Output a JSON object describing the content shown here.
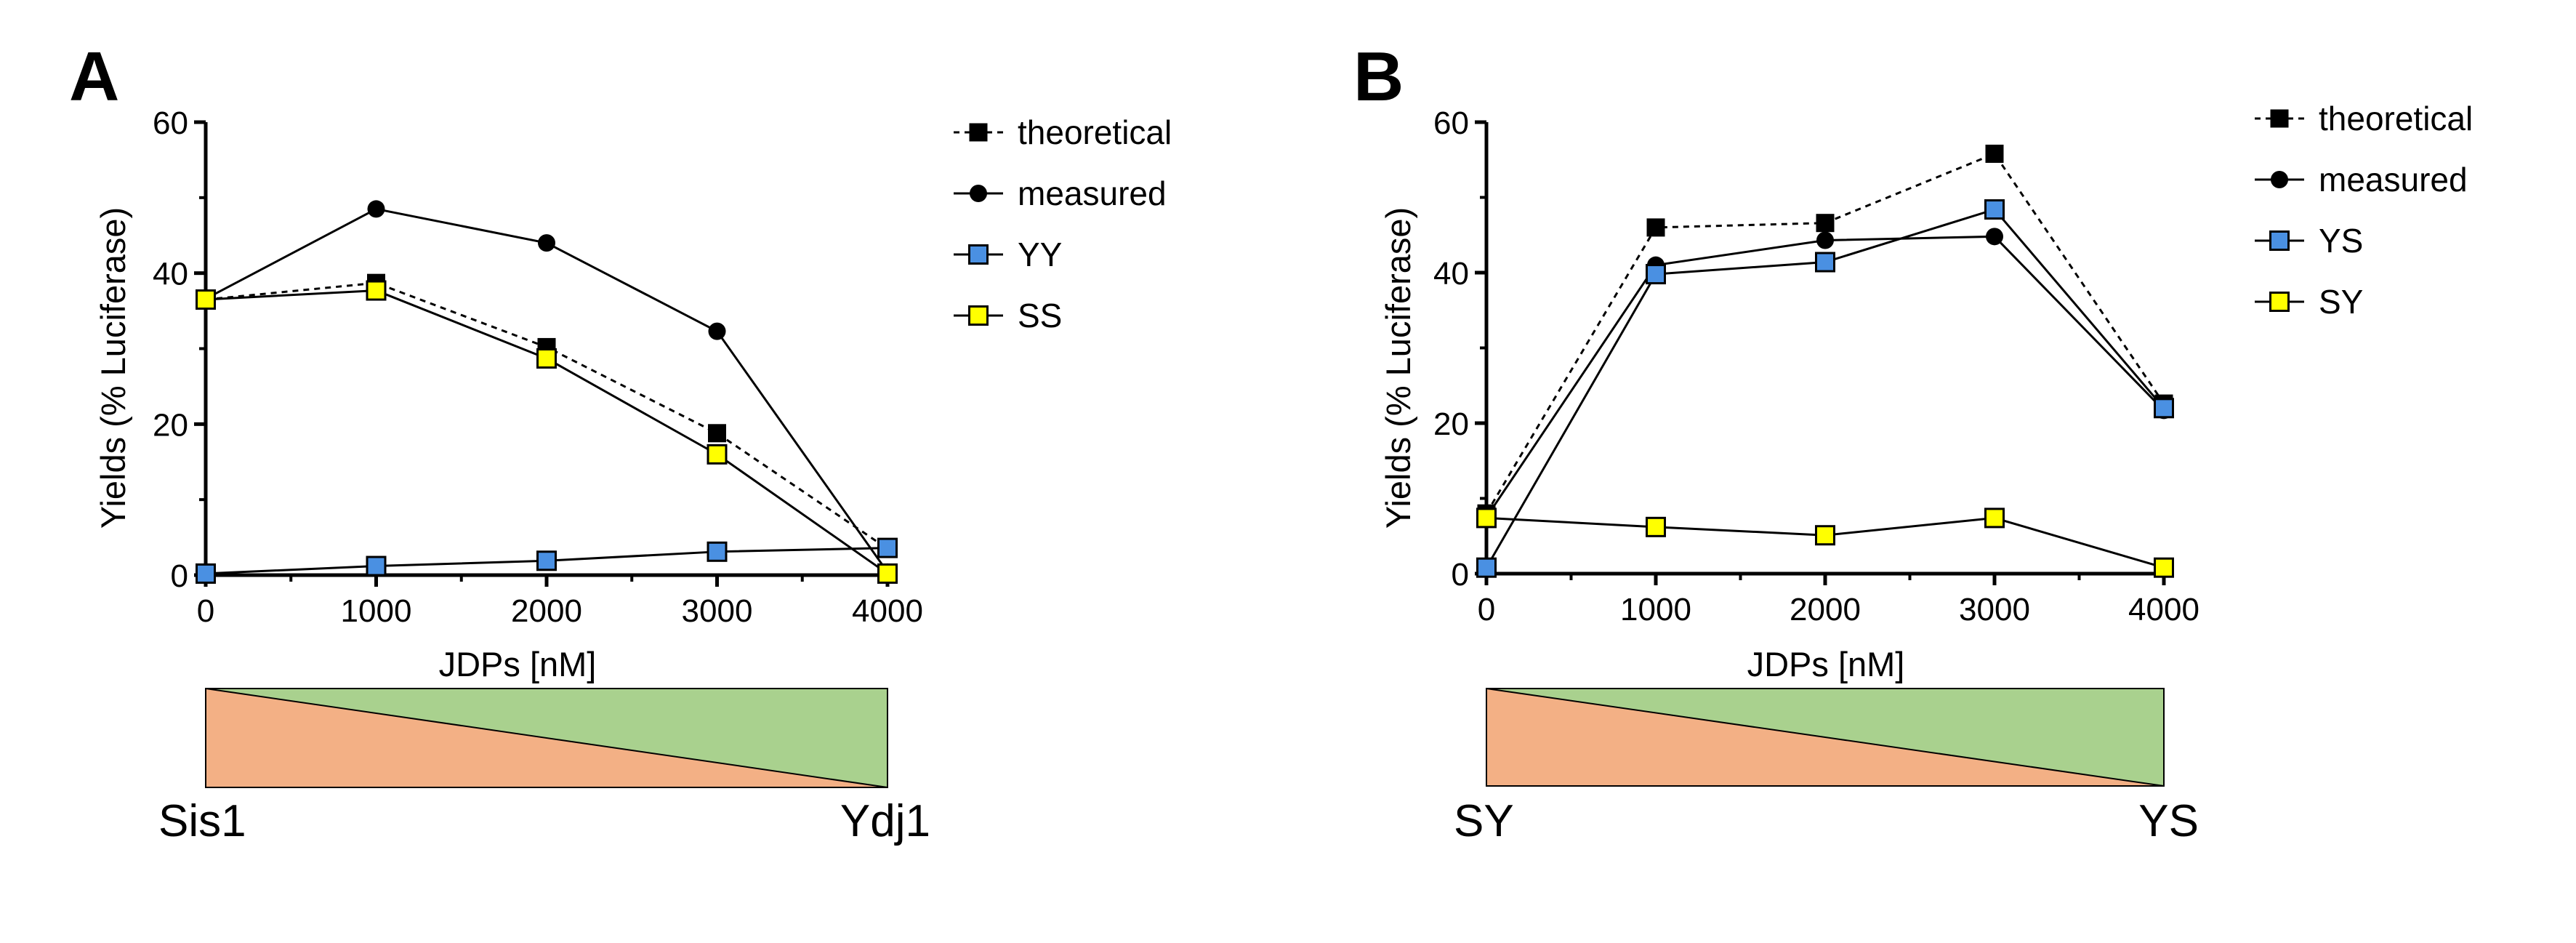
{
  "chart_data": [
    {
      "panel": "A",
      "type": "line",
      "xlabel": "JDPs [nM]",
      "ylabel": "Yields (% Luciferase)",
      "xlim": [
        0,
        4000
      ],
      "ylim": [
        0,
        60
      ],
      "x_ticks": [
        0,
        1000,
        2000,
        3000,
        4000
      ],
      "y_ticks": [
        0,
        20,
        40,
        60
      ],
      "x": [
        0,
        1000,
        2000,
        3000,
        4000
      ],
      "legend_position": "top-right",
      "series": [
        {
          "name": "theoretical",
          "marker": "square",
          "color": "#000000",
          "dashed": true,
          "values": [
            36.5,
            38.7,
            30.2,
            18.8,
            3.5
          ]
        },
        {
          "name": "measured",
          "marker": "circle",
          "color": "#000000",
          "dashed": false,
          "values": [
            36.6,
            48.5,
            44.0,
            32.3,
            0.4
          ]
        },
        {
          "name": "YY",
          "marker": "square",
          "color": "#4a90e2",
          "dashed": false,
          "values": [
            0.2,
            1.2,
            1.9,
            3.1,
            3.6
          ]
        },
        {
          "name": "SS",
          "marker": "square",
          "color": "#ffff00",
          "dashed": false,
          "values": [
            36.5,
            37.7,
            28.7,
            16.0,
            0.2
          ]
        }
      ],
      "gradient_bar": {
        "left_label": "Sis1",
        "right_label": "Ydj1",
        "orange": "#f3b085",
        "green": "#a9d18e"
      }
    },
    {
      "panel": "B",
      "type": "line",
      "xlabel": "JDPs [nM]",
      "ylabel": "Yields (% Luciferase)",
      "xlim": [
        0,
        4000
      ],
      "ylim": [
        0,
        60
      ],
      "x_ticks": [
        0,
        1000,
        2000,
        3000,
        4000
      ],
      "y_ticks": [
        0,
        20,
        40,
        60
      ],
      "x": [
        0,
        1000,
        2000,
        3000,
        4000
      ],
      "legend_position": "top-right",
      "series": [
        {
          "name": "theoretical",
          "marker": "square",
          "color": "#000000",
          "dashed": true,
          "values": [
            8.0,
            46.0,
            46.6,
            55.8,
            22.6
          ]
        },
        {
          "name": "measured",
          "marker": "circle",
          "color": "#000000",
          "dashed": false,
          "values": [
            7.5,
            41.0,
            44.3,
            44.8,
            21.7
          ]
        },
        {
          "name": "YS",
          "marker": "square",
          "color": "#4a90e2",
          "dashed": false,
          "values": [
            0.8,
            39.8,
            41.4,
            48.4,
            22.0
          ]
        },
        {
          "name": "SY",
          "marker": "square",
          "color": "#ffff00",
          "dashed": false,
          "values": [
            7.4,
            6.2,
            5.1,
            7.4,
            0.8
          ]
        }
      ],
      "gradient_bar": {
        "left_label": "SY",
        "right_label": "YS",
        "orange": "#f3b085",
        "green": "#a9d18e"
      }
    }
  ]
}
